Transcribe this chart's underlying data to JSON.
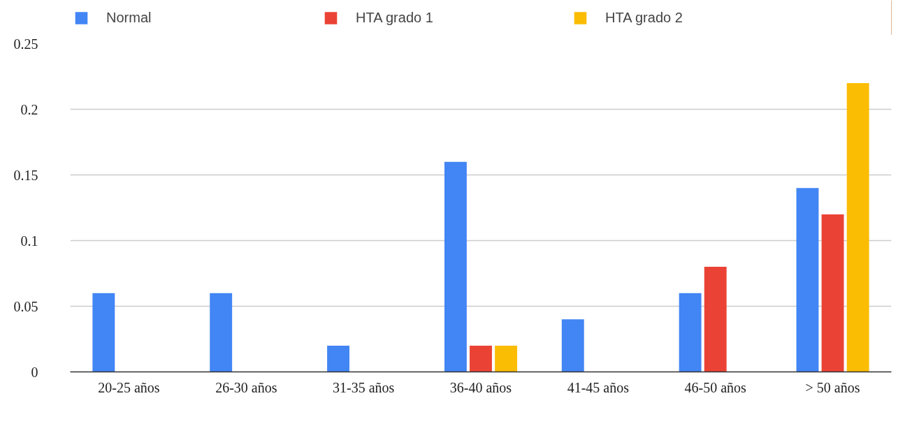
{
  "chart_data": {
    "type": "bar",
    "categories": [
      "20-25 años",
      "26-30 años",
      "31-35 años",
      "36-40 años",
      "41-45 años",
      "46-50 años",
      "> 50 años"
    ],
    "series": [
      {
        "name": "Normal",
        "color": "#4285f4",
        "values": [
          0.06,
          0.06,
          0.02,
          0.16,
          0.04,
          0.06,
          0.14
        ]
      },
      {
        "name": "HTA grado 1",
        "color": "#ea4335",
        "values": [
          0,
          0,
          0,
          0.02,
          0,
          0.08,
          0.12
        ]
      },
      {
        "name": "HTA grado 2",
        "color": "#fbbc04",
        "values": [
          0,
          0,
          0,
          0.02,
          0,
          0,
          0.22
        ]
      }
    ],
    "ylim": [
      0,
      0.25
    ],
    "yticks": [
      {
        "value": 0,
        "label": "0"
      },
      0.05,
      0.1,
      0.15,
      0.2,
      0.25
    ],
    "grid": "y",
    "legend": "top"
  }
}
